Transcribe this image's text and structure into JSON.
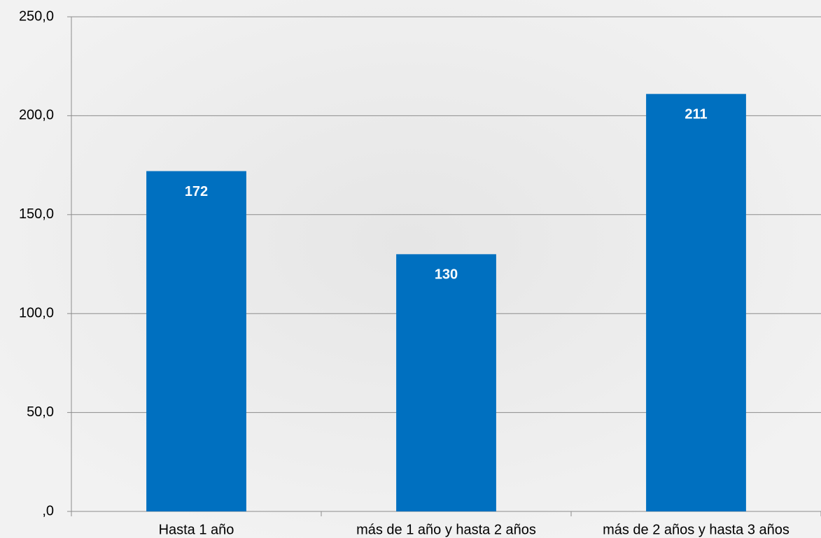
{
  "chart_data": {
    "type": "bar",
    "categories": [
      "Hasta 1 año",
      "más de 1 año y hasta 2 años",
      "más de 2 años y hasta 3 años"
    ],
    "values": [
      172,
      130,
      211
    ],
    "color": "#0070c0",
    "ylim": [
      0,
      250
    ],
    "yticks": [
      {
        "value": 0,
        "label": ",0"
      },
      {
        "value": 50,
        "label": "50,0"
      },
      {
        "value": 100,
        "label": "100,0"
      },
      {
        "value": 150,
        "label": "150,0"
      },
      {
        "value": 200,
        "label": "200,0"
      },
      {
        "value": 250,
        "label": "250,0"
      }
    ],
    "grid": true
  }
}
